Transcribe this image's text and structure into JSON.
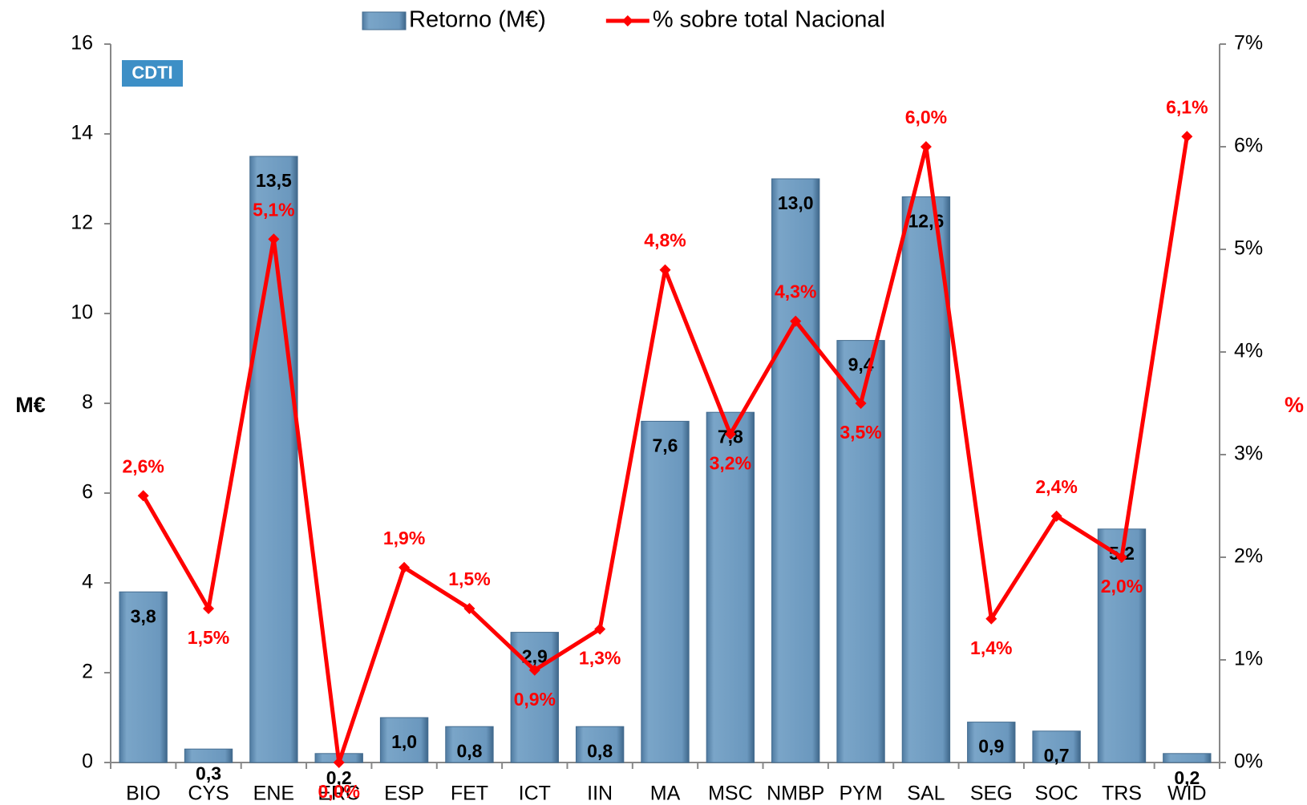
{
  "chart_data": {
    "type": "bar_line",
    "logo": "CDTI",
    "ylabel": "M€",
    "y2label": "%",
    "categories": [
      "BIO",
      "CYS",
      "ENE",
      "ERC",
      "ESP",
      "FET",
      "ICT",
      "IIN",
      "MA",
      "MSC",
      "NMBP",
      "PYM",
      "SAL",
      "SEG",
      "SOC",
      "TRS",
      "WID"
    ],
    "series": [
      {
        "name": "Retorno (M€)",
        "type": "bar",
        "color": "#6b98be",
        "values": [
          3.8,
          0.3,
          13.5,
          0.2,
          1.0,
          0.8,
          2.9,
          0.8,
          7.6,
          7.8,
          13.0,
          9.4,
          12.6,
          0.9,
          0.7,
          5.2,
          0.2
        ],
        "value_labels": [
          "3,8",
          "0,3",
          "13,5",
          "0,2",
          "1,0",
          "0,8",
          "2,9",
          "0,8",
          "7,6",
          "7,8",
          "13,0",
          "9,4",
          "12,6",
          "0,9",
          "0,7",
          "5,2",
          "0,2"
        ]
      },
      {
        "name": "% sobre total Nacional",
        "type": "line",
        "axis": "y2",
        "color": "#ff0000",
        "values": [
          2.6,
          1.5,
          5.1,
          0.0,
          1.9,
          1.5,
          0.9,
          1.3,
          4.8,
          3.2,
          4.3,
          3.5,
          6.0,
          1.4,
          2.4,
          2.0,
          6.1
        ],
        "value_labels": [
          "2,6%",
          "1,5%",
          "5,1%",
          "0,0%",
          "1,9%",
          "1,5%",
          "0,9%",
          "1,3%",
          "4,8%",
          "3,2%",
          "4,3%",
          "3,5%",
          "6,0%",
          "1,4%",
          "2,4%",
          "2,0%",
          "6,1%"
        ]
      }
    ],
    "ylim": [
      0,
      16
    ],
    "yticks": [
      0,
      2,
      4,
      6,
      8,
      10,
      12,
      14,
      16
    ],
    "y2lim": [
      0,
      7
    ],
    "y2ticks": [
      {
        "value": 0,
        "label": "0%"
      },
      {
        "value": 1,
        "label": "1%"
      },
      {
        "value": 2,
        "label": "2%"
      },
      {
        "value": 3,
        "label": "3%"
      },
      {
        "value": 4,
        "label": "4%"
      },
      {
        "value": 5,
        "label": "5%"
      },
      {
        "value": 6,
        "label": "6%"
      },
      {
        "value": 7,
        "label": "7%"
      }
    ],
    "legend": "top"
  }
}
